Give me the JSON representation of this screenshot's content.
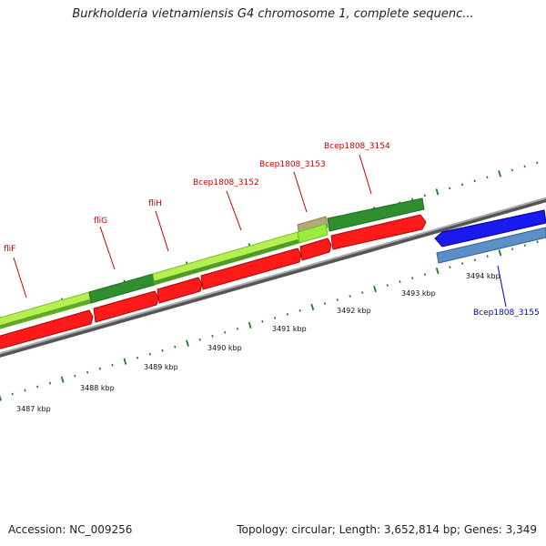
{
  "title": "Burkholderia vietnamiensis G4 chromosome 1, complete sequenc...",
  "footer": {
    "accession": "Accession: NC_009256",
    "summary": "Topology: circular; Length: 3,652,814 bp; Genes: 3,349"
  },
  "colors": {
    "forward_gene_label": "#cc0000",
    "reverse_gene_label": "#0000cc",
    "cds_forward": "#ff0000",
    "cds_reverse": "#0000ee",
    "gene_forward": "#2e8b2e",
    "gene_forward_light": "#adff2f",
    "gene_reverse": "#4682b4",
    "backbone": "#808080",
    "tick": "#1f7a1f"
  },
  "gene_labels": [
    {
      "name": "fliF",
      "strand": "forward"
    },
    {
      "name": "fliG",
      "strand": "forward"
    },
    {
      "name": "fliH",
      "strand": "forward"
    },
    {
      "name": "Bcep1808_3152",
      "strand": "forward"
    },
    {
      "name": "Bcep1808_3153",
      "strand": "forward"
    },
    {
      "name": "Bcep1808_3154",
      "strand": "forward"
    },
    {
      "name": "Bcep1808_3155",
      "strand": "reverse"
    }
  ],
  "scale_labels": [
    "3487 kbp",
    "3488 kbp",
    "3489 kbp",
    "3490 kbp",
    "3491 kbp",
    "3492 kbp",
    "3493 kbp",
    "3494 kbp"
  ]
}
